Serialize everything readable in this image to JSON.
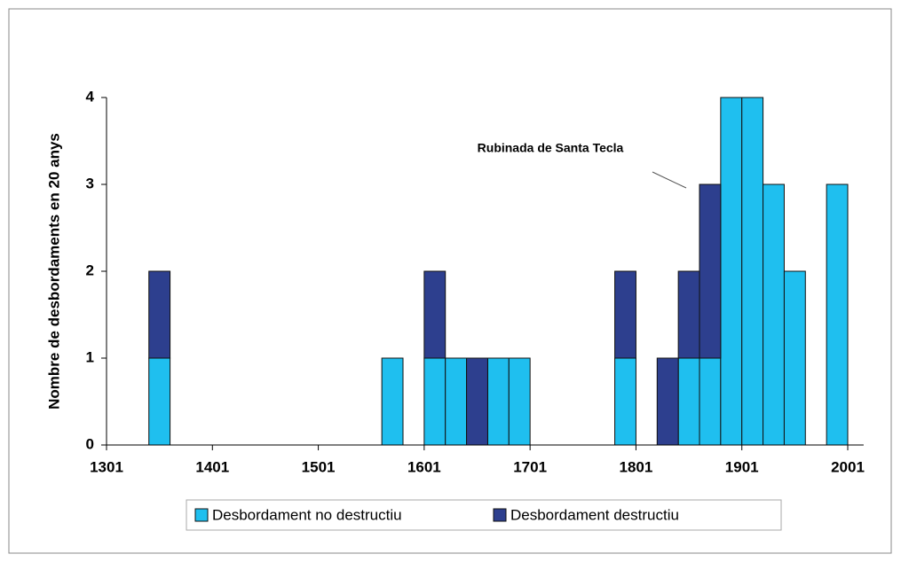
{
  "chart_data": {
    "type": "histogram",
    "annotation": "Rubinada de Santa Tecla",
    "y_label": "Nombre de desbordaments en 20 anys",
    "bins": [
      1301,
      1321,
      1341,
      1361,
      1381,
      1401,
      1421,
      1441,
      1461,
      1481,
      1501,
      1521,
      1541,
      1561,
      1581,
      1601,
      1621,
      1641,
      1661,
      1681,
      1701,
      1721,
      1741,
      1761,
      1781,
      1801,
      1821,
      1841,
      1861,
      1881,
      1901,
      1921,
      1941,
      1961,
      1981,
      2001
    ],
    "series": [
      {
        "name": "Desbordament no destructiu",
        "color": "#1fbfef",
        "values": [
          0,
          0,
          1,
          0,
          0,
          0,
          0,
          0,
          0,
          0,
          0,
          0,
          0,
          1,
          0,
          1,
          1,
          0,
          1,
          1,
          0,
          0,
          0,
          0,
          1,
          0,
          0,
          1,
          1,
          4,
          4,
          3,
          2,
          0,
          3
        ]
      },
      {
        "name": "Desbordament destructiu",
        "color": "#2d3f8e",
        "values": [
          0,
          0,
          1,
          0,
          0,
          0,
          0,
          0,
          0,
          0,
          0,
          0,
          0,
          0,
          0,
          1,
          0,
          1,
          0,
          0,
          0,
          0,
          0,
          0,
          1,
          0,
          1,
          1,
          2,
          0,
          0,
          0,
          0,
          0,
          0
        ]
      }
    ],
    "stacked": true,
    "xlim": [
      1301,
      2016
    ],
    "xticks": [
      1301,
      1401,
      1501,
      1601,
      1701,
      1801,
      1901,
      2001
    ],
    "ylim": [
      0,
      4
    ],
    "yticks": [
      0,
      1,
      2,
      3,
      4
    ],
    "legend": "bottom"
  }
}
